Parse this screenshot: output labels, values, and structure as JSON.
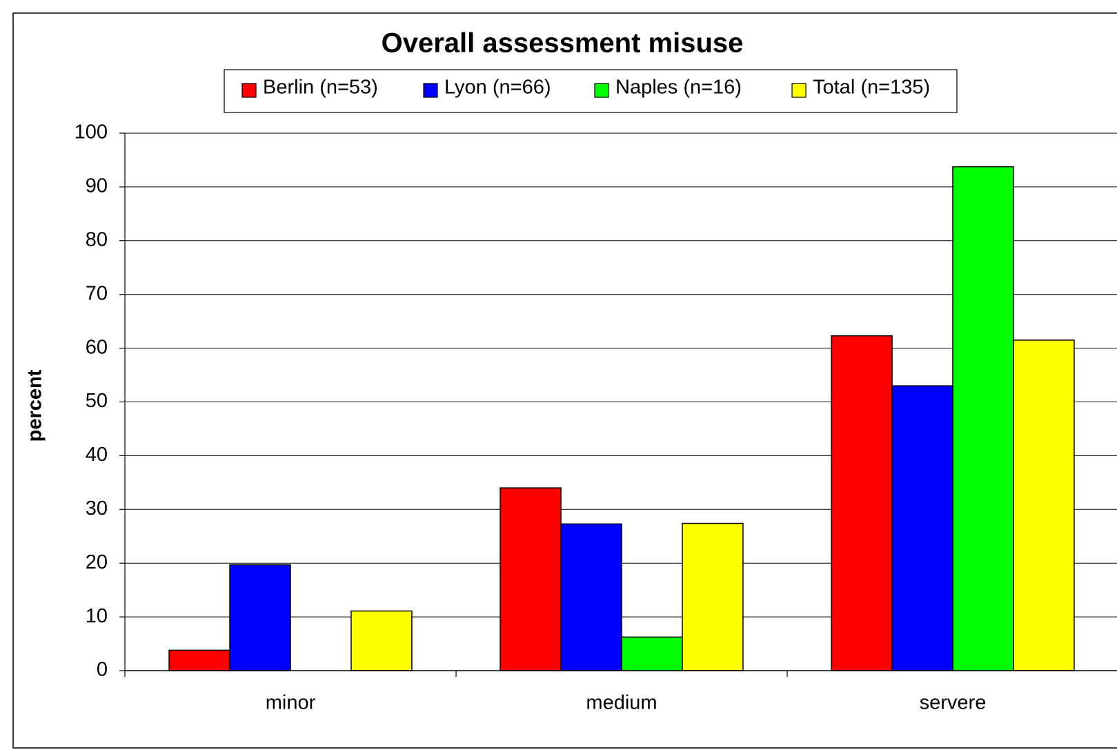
{
  "chart_data": {
    "type": "bar",
    "title": "Overall assessment misuse",
    "y_label": "percent",
    "categories": [
      "minor",
      "medium",
      "servere"
    ],
    "series": [
      {
        "name": "Berlin (n=53)",
        "color": "#ff0000",
        "values": [
          3.8,
          34.0,
          62.3
        ]
      },
      {
        "name": "Lyon (n=66)",
        "color": "#0000ff",
        "values": [
          19.7,
          27.3,
          53.0
        ]
      },
      {
        "name": "Naples (n=16)",
        "color": "#00ff00",
        "values": [
          0,
          6.25,
          93.75
        ]
      },
      {
        "name": "Total (n=135)",
        "color": "#ffff00",
        "values": [
          11.1,
          27.4,
          61.5
        ]
      }
    ],
    "ylim": [
      0,
      100
    ],
    "yticks": [
      0,
      10,
      20,
      30,
      40,
      50,
      60,
      70,
      80,
      90,
      100
    ],
    "grid": true,
    "legend": "top"
  }
}
